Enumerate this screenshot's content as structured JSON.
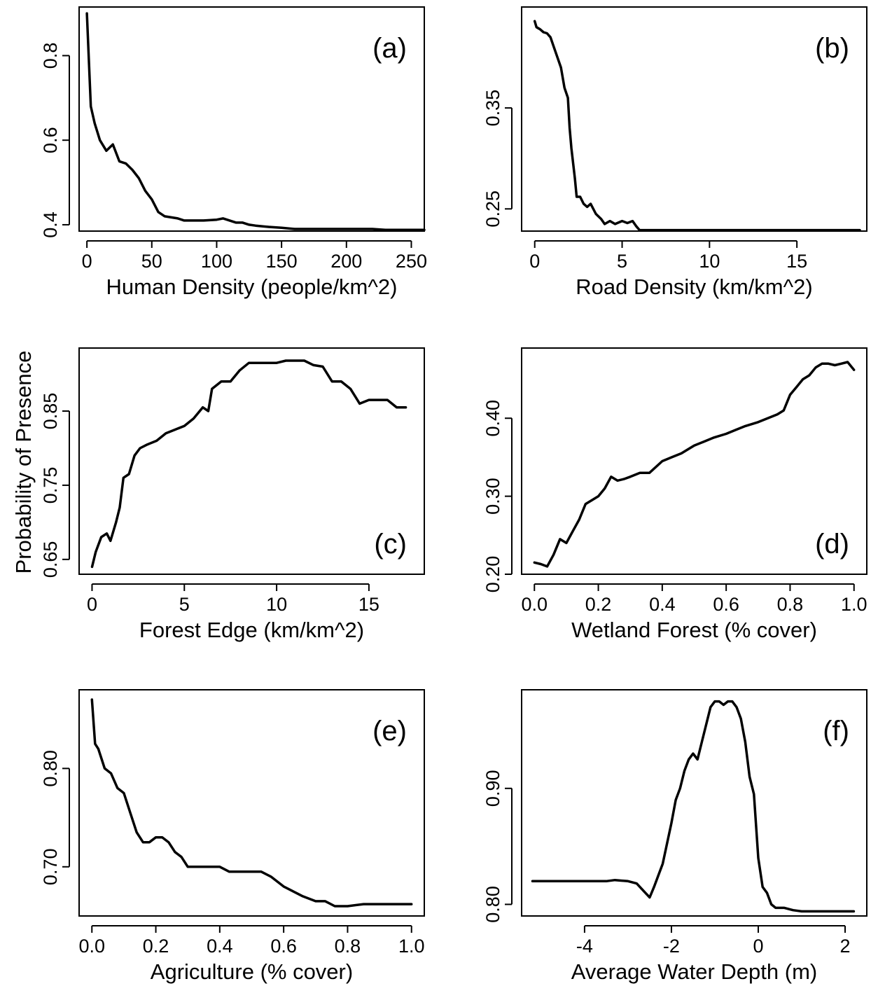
{
  "figure": {
    "ylabel": "Probability of Presence"
  },
  "chart_data": [
    {
      "type": "line",
      "panel_label": "(a)",
      "xlabel": "Human Density (people/km^2)",
      "xlim": [
        -6,
        260
      ],
      "ylim": [
        0.385,
        0.915
      ],
      "xticks": [
        0,
        50,
        100,
        150,
        200,
        250
      ],
      "xtick_labels": [
        "0",
        "50",
        "100",
        "150",
        "200",
        "250"
      ],
      "yticks": [
        0.4,
        0.6,
        0.8
      ],
      "ytick_labels": [
        "0.4",
        "0.6",
        "0.8"
      ],
      "series": [
        {
          "x": [
            0,
            3,
            6,
            10,
            15,
            20,
            25,
            30,
            35,
            40,
            45,
            50,
            55,
            60,
            70,
            75,
            80,
            90,
            100,
            105,
            110,
            115,
            120,
            125,
            130,
            140,
            150,
            160,
            180,
            200,
            220,
            230,
            260
          ],
          "y": [
            0.9,
            0.68,
            0.64,
            0.6,
            0.575,
            0.59,
            0.55,
            0.545,
            0.53,
            0.51,
            0.48,
            0.46,
            0.43,
            0.42,
            0.415,
            0.41,
            0.41,
            0.41,
            0.412,
            0.415,
            0.41,
            0.405,
            0.405,
            0.4,
            0.398,
            0.395,
            0.393,
            0.39,
            0.39,
            0.39,
            0.39,
            0.388,
            0.388
          ]
        }
      ]
    },
    {
      "type": "line",
      "panel_label": "(b)",
      "xlabel": "Road Density (km/km^2)",
      "xlim": [
        -0.75,
        19
      ],
      "ylim": [
        0.228,
        0.45
      ],
      "xticks": [
        0,
        5,
        10,
        15
      ],
      "xtick_labels": [
        "0",
        "5",
        "10",
        "15"
      ],
      "yticks": [
        0.25,
        0.35
      ],
      "ytick_labels": [
        "0.25",
        "0.35"
      ],
      "series": [
        {
          "x": [
            0,
            0.1,
            0.3,
            0.5,
            0.7,
            0.9,
            1.1,
            1.3,
            1.5,
            1.7,
            1.9,
            2.0,
            2.1,
            2.3,
            2.4,
            2.6,
            2.8,
            3.0,
            3.2,
            3.5,
            3.8,
            4.0,
            4.3,
            4.6,
            5.0,
            5.3,
            5.6,
            5.8,
            6.0,
            10,
            15,
            18.6
          ],
          "y": [
            0.436,
            0.43,
            0.428,
            0.425,
            0.424,
            0.42,
            0.41,
            0.4,
            0.39,
            0.37,
            0.36,
            0.33,
            0.31,
            0.28,
            0.262,
            0.262,
            0.255,
            0.252,
            0.255,
            0.245,
            0.24,
            0.235,
            0.238,
            0.235,
            0.238,
            0.236,
            0.238,
            0.233,
            0.229,
            0.229,
            0.229,
            0.229
          ]
        }
      ]
    },
    {
      "type": "line",
      "panel_label": "(c)",
      "xlabel": "Forest Edge (km/km^2)",
      "xlim": [
        -0.7,
        18
      ],
      "ylim": [
        0.63,
        0.935
      ],
      "xticks": [
        0,
        5,
        10,
        15
      ],
      "xtick_labels": [
        "0",
        "5",
        "10",
        "15"
      ],
      "yticks": [
        0.65,
        0.75,
        0.85
      ],
      "ytick_labels": [
        "0.65",
        "0.75",
        "0.85"
      ],
      "series": [
        {
          "x": [
            0,
            0.2,
            0.5,
            0.8,
            1.0,
            1.3,
            1.5,
            1.7,
            2.0,
            2.3,
            2.6,
            3.0,
            3.5,
            4.0,
            4.5,
            5.0,
            5.5,
            6.0,
            6.3,
            6.5,
            7.0,
            7.5,
            8.0,
            8.5,
            9.0,
            9.5,
            10.0,
            10.5,
            11.0,
            11.5,
            12.0,
            12.5,
            13.0,
            13.5,
            14.0,
            14.5,
            15.0,
            15.5,
            16.0,
            16.5,
            17.0
          ],
          "y": [
            0.64,
            0.66,
            0.68,
            0.685,
            0.675,
            0.7,
            0.72,
            0.76,
            0.765,
            0.79,
            0.8,
            0.805,
            0.81,
            0.82,
            0.825,
            0.83,
            0.84,
            0.855,
            0.85,
            0.88,
            0.89,
            0.89,
            0.905,
            0.915,
            0.915,
            0.915,
            0.915,
            0.918,
            0.918,
            0.918,
            0.912,
            0.91,
            0.89,
            0.89,
            0.88,
            0.86,
            0.865,
            0.865,
            0.865,
            0.855,
            0.855
          ]
        }
      ]
    },
    {
      "type": "line",
      "panel_label": "(d)",
      "xlabel": "Wetland Forest (% cover)",
      "xlim": [
        -0.04,
        1.04
      ],
      "ylim": [
        0.2,
        0.49
      ],
      "xticks": [
        0.0,
        0.2,
        0.4,
        0.6,
        0.8,
        1.0
      ],
      "xtick_labels": [
        "0.0",
        "0.2",
        "0.4",
        "0.6",
        "0.8",
        "1.0"
      ],
      "yticks": [
        0.2,
        0.3,
        0.4
      ],
      "ytick_labels": [
        "0.20",
        "0.30",
        "0.40"
      ],
      "series": [
        {
          "x": [
            0,
            0.02,
            0.04,
            0.06,
            0.08,
            0.1,
            0.12,
            0.14,
            0.16,
            0.18,
            0.2,
            0.22,
            0.24,
            0.26,
            0.28,
            0.3,
            0.33,
            0.36,
            0.4,
            0.43,
            0.46,
            0.5,
            0.53,
            0.56,
            0.6,
            0.63,
            0.66,
            0.7,
            0.73,
            0.76,
            0.78,
            0.8,
            0.82,
            0.84,
            0.86,
            0.88,
            0.9,
            0.92,
            0.94,
            0.96,
            0.98,
            1.0
          ],
          "y": [
            0.215,
            0.213,
            0.21,
            0.225,
            0.245,
            0.24,
            0.255,
            0.27,
            0.29,
            0.295,
            0.3,
            0.31,
            0.325,
            0.32,
            0.322,
            0.325,
            0.33,
            0.33,
            0.345,
            0.35,
            0.355,
            0.365,
            0.37,
            0.375,
            0.38,
            0.385,
            0.39,
            0.395,
            0.4,
            0.405,
            0.41,
            0.43,
            0.44,
            0.45,
            0.455,
            0.465,
            0.47,
            0.47,
            0.468,
            0.47,
            0.472,
            0.462
          ]
        }
      ]
    },
    {
      "type": "line",
      "panel_label": "(e)",
      "xlabel": "Agriculture (% cover)",
      "xlim": [
        -0.04,
        1.04
      ],
      "ylim": [
        0.65,
        0.88
      ],
      "xticks": [
        0.0,
        0.2,
        0.4,
        0.6,
        0.8,
        1.0
      ],
      "xtick_labels": [
        "0.0",
        "0.2",
        "0.4",
        "0.6",
        "0.8",
        "1.0"
      ],
      "yticks": [
        0.7,
        0.8
      ],
      "ytick_labels": [
        "0.70",
        "0.80"
      ],
      "series": [
        {
          "x": [
            0,
            0.01,
            0.02,
            0.04,
            0.06,
            0.08,
            0.1,
            0.12,
            0.14,
            0.16,
            0.18,
            0.2,
            0.22,
            0.24,
            0.26,
            0.28,
            0.3,
            0.33,
            0.36,
            0.4,
            0.43,
            0.46,
            0.5,
            0.53,
            0.56,
            0.6,
            0.63,
            0.66,
            0.7,
            0.73,
            0.76,
            0.8,
            0.85,
            0.9,
            0.95,
            1.0
          ],
          "y": [
            0.87,
            0.825,
            0.82,
            0.8,
            0.795,
            0.78,
            0.775,
            0.755,
            0.735,
            0.725,
            0.725,
            0.73,
            0.73,
            0.725,
            0.715,
            0.71,
            0.7,
            0.7,
            0.7,
            0.7,
            0.695,
            0.695,
            0.695,
            0.695,
            0.69,
            0.68,
            0.675,
            0.67,
            0.665,
            0.665,
            0.66,
            0.66,
            0.662,
            0.662,
            0.662,
            0.662
          ]
        }
      ]
    },
    {
      "type": "line",
      "panel_label": "(f)",
      "xlabel": "Average Water Depth (m)",
      "xlim": [
        -5.45,
        2.5
      ],
      "ylim": [
        0.79,
        0.985
      ],
      "xticks": [
        -4,
        -2,
        0,
        2
      ],
      "xtick_labels": [
        "-4",
        "-2",
        "0",
        "2"
      ],
      "yticks": [
        0.8,
        0.9
      ],
      "ytick_labels": [
        "0.80",
        "0.90"
      ],
      "series": [
        {
          "x": [
            -5.2,
            -4.5,
            -4.0,
            -3.5,
            -3.3,
            -3.0,
            -2.8,
            -2.6,
            -2.5,
            -2.4,
            -2.3,
            -2.2,
            -2.0,
            -1.9,
            -1.8,
            -1.7,
            -1.6,
            -1.5,
            -1.4,
            -1.3,
            -1.2,
            -1.1,
            -1.0,
            -0.9,
            -0.8,
            -0.7,
            -0.6,
            -0.5,
            -0.4,
            -0.3,
            -0.2,
            -0.1,
            0.0,
            0.1,
            0.2,
            0.3,
            0.4,
            0.6,
            0.8,
            1.0,
            1.5,
            2.2
          ],
          "y": [
            0.82,
            0.82,
            0.82,
            0.82,
            0.821,
            0.82,
            0.818,
            0.81,
            0.806,
            0.815,
            0.825,
            0.835,
            0.87,
            0.89,
            0.9,
            0.915,
            0.925,
            0.93,
            0.925,
            0.94,
            0.955,
            0.97,
            0.975,
            0.975,
            0.972,
            0.975,
            0.975,
            0.97,
            0.96,
            0.94,
            0.91,
            0.895,
            0.84,
            0.815,
            0.81,
            0.8,
            0.797,
            0.797,
            0.795,
            0.794,
            0.794,
            0.794
          ]
        }
      ]
    }
  ]
}
